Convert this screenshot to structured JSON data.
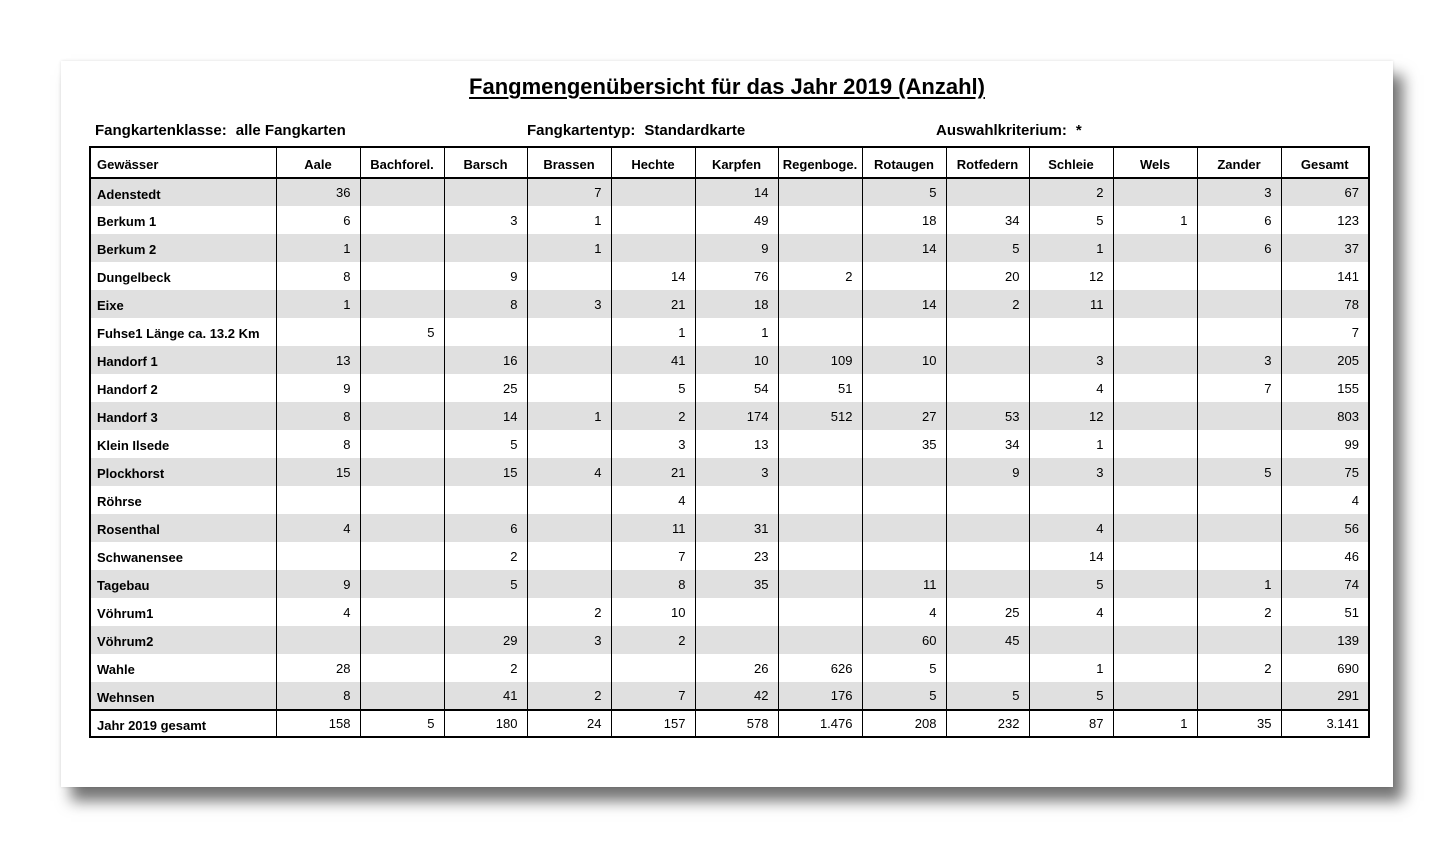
{
  "title": "Fangmengenübersicht für das Jahr 2019 (Anzahl)",
  "meta": {
    "klasse_label": "Fangkartenklasse:",
    "klasse_value": "alle Fangkarten",
    "typ_label": "Fangkartentyp:",
    "typ_value": "Standardkarte",
    "kriterium_label": "Auswahlkriterium:",
    "kriterium_value": "*"
  },
  "table": {
    "headers": [
      "Gewässer",
      "Aale",
      "Bachforel.",
      "Barsch",
      "Brassen",
      "Hechte",
      "Karpfen",
      "Regenboge.",
      "Rotaugen",
      "Rotfedern",
      "Schleie",
      "Wels",
      "Zander",
      "Gesamt"
    ],
    "rows": [
      [
        "Adenstedt",
        "36",
        "",
        "",
        "7",
        "",
        "14",
        "",
        "5",
        "",
        "2",
        "",
        "3",
        "67"
      ],
      [
        "Berkum 1",
        "6",
        "",
        "3",
        "1",
        "",
        "49",
        "",
        "18",
        "34",
        "5",
        "1",
        "6",
        "123"
      ],
      [
        "Berkum 2",
        "1",
        "",
        "",
        "1",
        "",
        "9",
        "",
        "14",
        "5",
        "1",
        "",
        "6",
        "37"
      ],
      [
        "Dungelbeck",
        "8",
        "",
        "9",
        "",
        "14",
        "76",
        "2",
        "",
        "20",
        "12",
        "",
        "",
        "141"
      ],
      [
        "Eixe",
        "1",
        "",
        "8",
        "3",
        "21",
        "18",
        "",
        "14",
        "2",
        "11",
        "",
        "",
        "78"
      ],
      [
        "Fuhse1 Länge ca. 13.2 Km",
        "",
        "5",
        "",
        "",
        "1",
        "1",
        "",
        "",
        "",
        "",
        "",
        "",
        "7"
      ],
      [
        "Handorf 1",
        "13",
        "",
        "16",
        "",
        "41",
        "10",
        "109",
        "10",
        "",
        "3",
        "",
        "3",
        "205"
      ],
      [
        "Handorf 2",
        "9",
        "",
        "25",
        "",
        "5",
        "54",
        "51",
        "",
        "",
        "4",
        "",
        "7",
        "155"
      ],
      [
        "Handorf 3",
        "8",
        "",
        "14",
        "1",
        "2",
        "174",
        "512",
        "27",
        "53",
        "12",
        "",
        "",
        "803"
      ],
      [
        "Klein Ilsede",
        "8",
        "",
        "5",
        "",
        "3",
        "13",
        "",
        "35",
        "34",
        "1",
        "",
        "",
        "99"
      ],
      [
        "Plockhorst",
        "15",
        "",
        "15",
        "4",
        "21",
        "3",
        "",
        "",
        "9",
        "3",
        "",
        "5",
        "75"
      ],
      [
        "Röhrse",
        "",
        "",
        "",
        "",
        "4",
        "",
        "",
        "",
        "",
        "",
        "",
        "",
        "4"
      ],
      [
        "Rosenthal",
        "4",
        "",
        "6",
        "",
        "11",
        "31",
        "",
        "",
        "",
        "4",
        "",
        "",
        "56"
      ],
      [
        "Schwanensee",
        "",
        "",
        "2",
        "",
        "7",
        "23",
        "",
        "",
        "",
        "14",
        "",
        "",
        "46"
      ],
      [
        "Tagebau",
        "9",
        "",
        "5",
        "",
        "8",
        "35",
        "",
        "11",
        "",
        "5",
        "",
        "1",
        "74"
      ],
      [
        "Vöhrum1",
        "4",
        "",
        "",
        "2",
        "10",
        "",
        "",
        "4",
        "25",
        "4",
        "",
        "2",
        "51"
      ],
      [
        "Vöhrum2",
        "",
        "",
        "29",
        "3",
        "2",
        "",
        "",
        "60",
        "45",
        "",
        "",
        "",
        "139"
      ],
      [
        "Wahle",
        "28",
        "",
        "2",
        "",
        "",
        "26",
        "626",
        "5",
        "",
        "1",
        "",
        "2",
        "690"
      ],
      [
        "Wehnsen",
        "8",
        "",
        "41",
        "2",
        "7",
        "42",
        "176",
        "5",
        "5",
        "5",
        "",
        "",
        "291"
      ]
    ],
    "total": [
      "Jahr 2019 gesamt",
      "158",
      "5",
      "180",
      "24",
      "157",
      "578",
      "1.476",
      "208",
      "232",
      "87",
      "1",
      "35",
      "3.141"
    ]
  }
}
